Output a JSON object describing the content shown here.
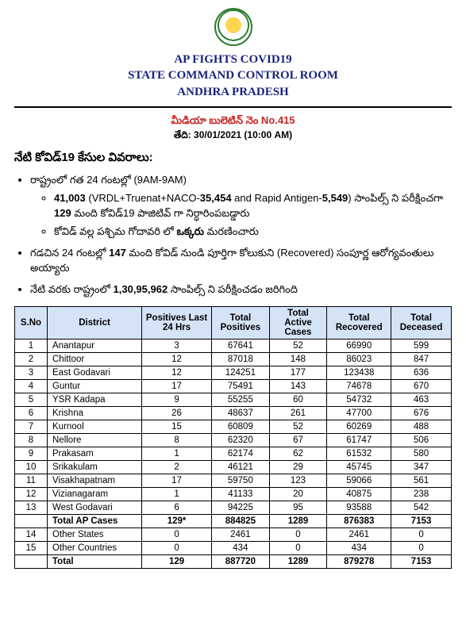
{
  "header": {
    "line1": "AP FIGHTS COVID19",
    "line2": "STATE COMMAND CONTROL ROOM",
    "line3": "ANDHRA PRADESH"
  },
  "bulletin": {
    "number_line": "మీడియా బులెటిన్ నెం No.415",
    "date_label": "తేది:",
    "date_value": "30/01/2021 (10:00 AM)"
  },
  "section_title": "నేటి కోవిడ్19 కేసుల వివరాలు:",
  "bullets": {
    "b1": "రాష్ట్రంలో గత 24 గంటల్లో (9AM-9AM)",
    "b1a_prefix": "41,003",
    "b1a_mid1": " (VRDL+Truenat+NACO-",
    "b1a_v1": "35,454",
    "b1a_mid2": " and Rapid Antigen-",
    "b1a_v2": "5,549",
    "b1a_mid3": ") సాంపిల్స్ ని పరీక్షించగా ",
    "b1a_v3": "129",
    "b1a_suffix": " మంది కోవిడ్19 పాజిటివ్ గా నిర్ధారింపబడ్డారు",
    "b1b_pre": "కోవిడ్ వల్ల పశ్చిమ గోదావరి లో ",
    "b1b_bold": "ఒక్కరు",
    "b1b_post": " మరణించారు",
    "b2_pre": "గడచిన 24 గంటల్లో ",
    "b2_v": "147",
    "b2_post": " మంది కోవిడ్ నుండి పూర్తిగా కోలుకుని (Recovered) సంపూర్ణ ఆరోగ్యవంతులు అయ్యారు",
    "b3_pre": "నేటి వరకు రాష్ట్రంలో ",
    "b3_v": "1,30,95,962",
    "b3_post": " సాంపిల్స్ ని పరీక్షించడం జరిగింది"
  },
  "table": {
    "headers": [
      "S.No",
      "District",
      "Positives Last 24 Hrs",
      "Total Positives",
      "Total Active Cases",
      "Total Recovered",
      "Total Deceased"
    ],
    "rows": [
      [
        "1",
        "Anantapur",
        "3",
        "67641",
        "52",
        "66990",
        "599"
      ],
      [
        "2",
        "Chittoor",
        "12",
        "87018",
        "148",
        "86023",
        "847"
      ],
      [
        "3",
        "East Godavari",
        "12",
        "124251",
        "177",
        "123438",
        "636"
      ],
      [
        "4",
        "Guntur",
        "17",
        "75491",
        "143",
        "74678",
        "670"
      ],
      [
        "5",
        "YSR Kadapa",
        "9",
        "55255",
        "60",
        "54732",
        "463"
      ],
      [
        "6",
        "Krishna",
        "26",
        "48637",
        "261",
        "47700",
        "676"
      ],
      [
        "7",
        "Kurnool",
        "15",
        "60809",
        "52",
        "60269",
        "488"
      ],
      [
        "8",
        "Nellore",
        "8",
        "62320",
        "67",
        "61747",
        "506"
      ],
      [
        "9",
        "Prakasam",
        "1",
        "62174",
        "62",
        "61532",
        "580"
      ],
      [
        "10",
        "Srikakulam",
        "2",
        "46121",
        "29",
        "45745",
        "347"
      ],
      [
        "11",
        "Visakhapatnam",
        "17",
        "59750",
        "123",
        "59066",
        "561"
      ],
      [
        "12",
        "Vizianagaram",
        "1",
        "41133",
        "20",
        "40875",
        "238"
      ],
      [
        "13",
        "West Godavari",
        "6",
        "94225",
        "95",
        "93588",
        "542"
      ]
    ],
    "subtotal": [
      "",
      "Total AP Cases",
      "129*",
      "884825",
      "1289",
      "876383",
      "7153"
    ],
    "extra": [
      [
        "14",
        "Other States",
        "0",
        "2461",
        "0",
        "2461",
        "0"
      ],
      [
        "15",
        "Other Countries",
        "0",
        "434",
        "0",
        "434",
        "0"
      ]
    ],
    "grand": [
      "",
      "Total",
      "129",
      "887720",
      "1289",
      "879278",
      "7153"
    ]
  }
}
